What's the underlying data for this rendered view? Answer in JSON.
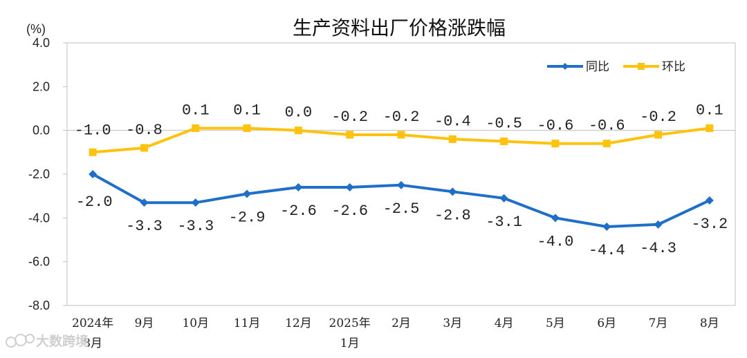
{
  "chart_data": {
    "type": "line",
    "title": "生产资料出厂价格涨跌幅",
    "unit_label": "(%)",
    "categories": [
      [
        "2024年",
        "8月"
      ],
      [
        "9月"
      ],
      [
        "10月"
      ],
      [
        "11月"
      ],
      [
        "12月"
      ],
      [
        "2025年",
        "1月"
      ],
      [
        "2月"
      ],
      [
        "3月"
      ],
      [
        "4月"
      ],
      [
        "5月"
      ],
      [
        "6月"
      ],
      [
        "7月"
      ],
      [
        "8月"
      ]
    ],
    "ylim": [
      -8,
      4
    ],
    "yticks": [
      "4.0",
      "2.0",
      "0.0",
      "-2.0",
      "-4.0",
      "-6.0",
      "-8.0"
    ],
    "ytick_values": [
      4,
      2,
      0,
      -2,
      -4,
      -6,
      -8
    ],
    "grid": false,
    "legend_position": "top-right",
    "series": [
      {
        "name": "同比",
        "color": "#1f6fc9",
        "marker": "diamond",
        "values": [
          -2.0,
          -3.3,
          -3.3,
          -2.9,
          -2.6,
          -2.6,
          -2.5,
          -2.8,
          -3.1,
          -4.0,
          -4.4,
          -4.3,
          -3.2
        ],
        "labels": [
          "-2.0",
          "-3.3",
          "-3.3",
          "-2.9",
          "-2.6",
          "-2.6",
          "-2.5",
          "-2.8",
          "-3.1",
          "-4.0",
          "-4.4",
          "-4.3",
          "-3.2"
        ]
      },
      {
        "name": "环比",
        "color": "#ffc20e",
        "marker": "square",
        "values": [
          -1.0,
          -0.8,
          0.1,
          0.1,
          0.0,
          -0.2,
          -0.2,
          -0.4,
          -0.5,
          -0.6,
          -0.6,
          -0.2,
          0.1
        ],
        "labels": [
          "-1.0",
          "-0.8",
          "0.1",
          "0.1",
          "0.0",
          "-0.2",
          "-0.2",
          "-0.4",
          "-0.5",
          "-0.6",
          "-0.6",
          "-0.2",
          "0.1"
        ]
      }
    ]
  },
  "watermark": {
    "text": "大数跨境"
  }
}
